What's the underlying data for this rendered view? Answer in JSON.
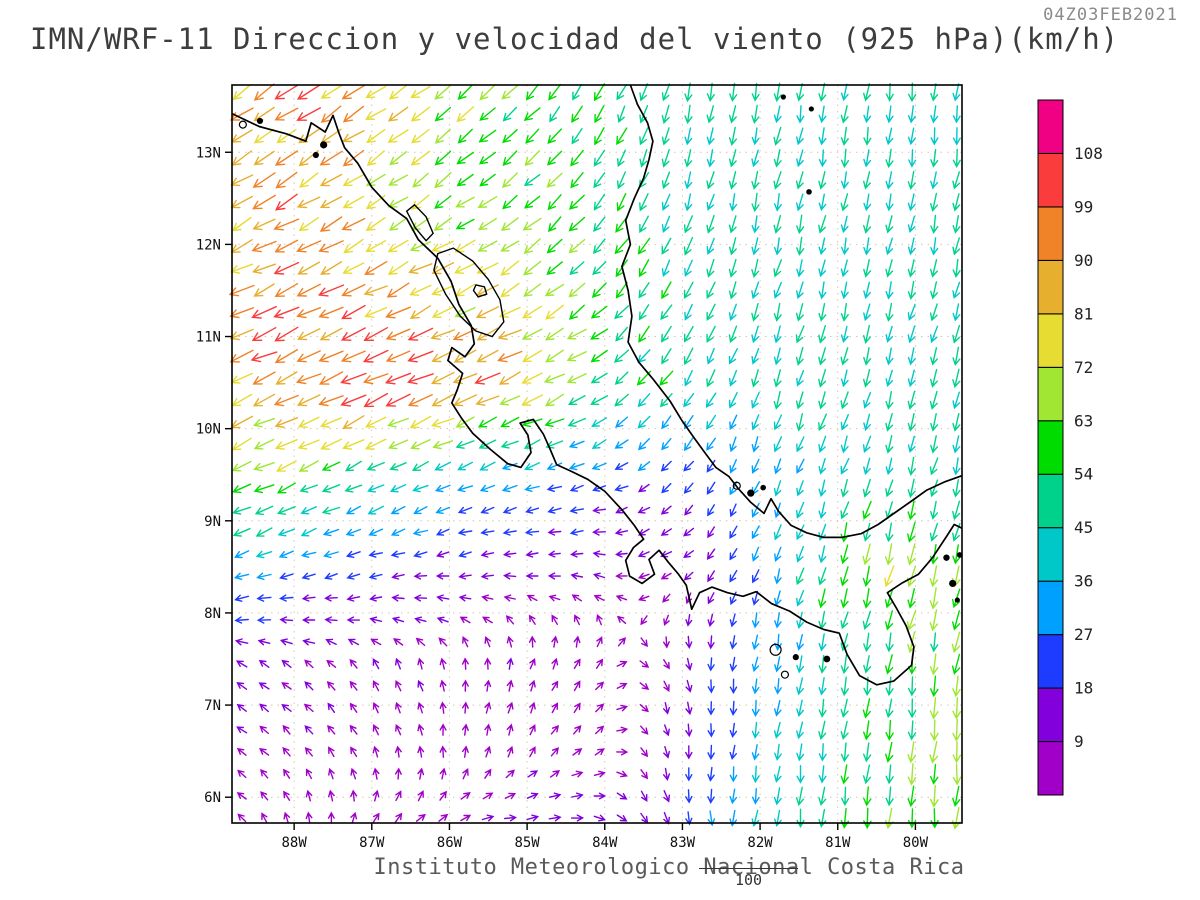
{
  "header": {
    "title": "IMN/WRF-11 Direccion y velocidad del viento (925 hPa)(km/h)",
    "timestamp": "04Z03FEB2021"
  },
  "footer": {
    "credit": "Instituto Meteorologico Nacional Costa Rica",
    "scale_label": "100"
  },
  "chart_data": {
    "type": "vector_field",
    "title": "IMN/WRF-11 Direccion y velocidad del viento (925 hPa)(km/h)",
    "variable": "Direccion y velocidad del viento",
    "level": "925 hPa",
    "units": "km/h",
    "valid_time": "04Z03FEB2021",
    "axes": {
      "lat_ticks": [
        "13N",
        "12N",
        "11N",
        "10N",
        "9N",
        "8N",
        "7N",
        "6N"
      ],
      "lat_values": [
        13,
        12,
        11,
        10,
        9,
        8,
        7,
        6
      ],
      "lon_ticks": [
        "88W",
        "87W",
        "86W",
        "85W",
        "84W",
        "83W",
        "82W",
        "81W",
        "80W"
      ],
      "lon_values": [
        -88,
        -87,
        -86,
        -85,
        -84,
        -83,
        -82,
        -81,
        -80
      ]
    },
    "colorbar": {
      "levels": [
        9,
        18,
        27,
        36,
        45,
        54,
        63,
        72,
        81,
        90,
        99,
        108
      ],
      "label_values": [
        "9",
        "18",
        "27",
        "36",
        "45",
        "54",
        "63",
        "72",
        "81",
        "90",
        "99",
        "108"
      ],
      "colors": [
        "#a000c8",
        "#8200dc",
        "#1e3cff",
        "#00a0ff",
        "#00c8c8",
        "#00d28c",
        "#00dc00",
        "#a0e632",
        "#e6dc32",
        "#e6af2d",
        "#f08228",
        "#fa3c3c",
        "#f00082"
      ]
    },
    "map": {
      "extent": {
        "lon_min": -88.8,
        "lon_max": -79.4,
        "lat_min": 5.72,
        "lat_max": 13.73
      },
      "coastlines": [
        [
          [
            -88.8,
            13.42
          ],
          [
            -88.45,
            13.28
          ],
          [
            -88.1,
            13.2
          ],
          [
            -87.85,
            13.12
          ],
          [
            -87.78,
            13.32
          ],
          [
            -87.6,
            13.22
          ],
          [
            -87.5,
            13.4
          ],
          [
            -87.42,
            13.2
          ],
          [
            -87.35,
            13.05
          ],
          [
            -87.18,
            12.88
          ],
          [
            -87.0,
            12.62
          ],
          [
            -86.78,
            12.42
          ],
          [
            -86.55,
            12.28
          ],
          [
            -86.4,
            12.05
          ],
          [
            -86.15,
            11.85
          ],
          [
            -85.98,
            11.6
          ],
          [
            -85.88,
            11.35
          ],
          [
            -85.72,
            11.12
          ],
          [
            -85.68,
            10.92
          ],
          [
            -85.8,
            10.78
          ],
          [
            -85.97,
            10.88
          ],
          [
            -86.02,
            10.74
          ],
          [
            -85.83,
            10.6
          ],
          [
            -85.9,
            10.42
          ],
          [
            -85.97,
            10.28
          ],
          [
            -85.85,
            10.12
          ],
          [
            -85.7,
            9.95
          ],
          [
            -85.48,
            9.78
          ],
          [
            -85.25,
            9.62
          ],
          [
            -85.08,
            9.58
          ],
          [
            -84.95,
            9.74
          ],
          [
            -84.99,
            9.93
          ],
          [
            -85.09,
            10.06
          ],
          [
            -84.92,
            10.1
          ],
          [
            -84.79,
            9.94
          ],
          [
            -84.7,
            9.77
          ],
          [
            -84.62,
            9.61
          ],
          [
            -84.44,
            9.54
          ],
          [
            -84.22,
            9.45
          ],
          [
            -84.0,
            9.32
          ],
          [
            -83.78,
            9.12
          ],
          [
            -83.62,
            8.95
          ],
          [
            -83.5,
            8.8
          ],
          [
            -83.63,
            8.71
          ],
          [
            -83.73,
            8.57
          ],
          [
            -83.68,
            8.4
          ],
          [
            -83.52,
            8.32
          ],
          [
            -83.36,
            8.42
          ],
          [
            -83.43,
            8.58
          ],
          [
            -83.3,
            8.68
          ],
          [
            -83.18,
            8.55
          ],
          [
            -83.05,
            8.42
          ],
          [
            -82.95,
            8.3
          ],
          [
            -82.88,
            8.04
          ],
          [
            -82.78,
            8.22
          ],
          [
            -82.62,
            8.28
          ],
          [
            -82.42,
            8.22
          ],
          [
            -82.22,
            8.18
          ],
          [
            -82.05,
            8.23
          ],
          [
            -81.85,
            8.1
          ],
          [
            -81.62,
            8.02
          ],
          [
            -81.4,
            7.9
          ],
          [
            -81.18,
            7.82
          ],
          [
            -80.98,
            7.78
          ],
          [
            -80.88,
            7.55
          ],
          [
            -80.72,
            7.32
          ],
          [
            -80.5,
            7.22
          ],
          [
            -80.28,
            7.26
          ],
          [
            -80.05,
            7.43
          ],
          [
            -80.02,
            7.63
          ],
          [
            -80.12,
            7.86
          ],
          [
            -80.25,
            8.06
          ],
          [
            -80.36,
            8.22
          ],
          [
            -80.18,
            8.32
          ],
          [
            -79.96,
            8.42
          ],
          [
            -79.78,
            8.6
          ],
          [
            -79.6,
            8.83
          ],
          [
            -79.5,
            8.96
          ],
          [
            -79.4,
            8.92
          ]
        ],
        [
          [
            -83.67,
            13.73
          ],
          [
            -83.58,
            13.52
          ],
          [
            -83.45,
            13.32
          ],
          [
            -83.38,
            13.12
          ],
          [
            -83.43,
            12.92
          ],
          [
            -83.5,
            12.72
          ],
          [
            -83.62,
            12.5
          ],
          [
            -83.73,
            12.26
          ],
          [
            -83.67,
            12.0
          ],
          [
            -83.78,
            11.76
          ],
          [
            -83.7,
            11.5
          ],
          [
            -83.65,
            11.22
          ],
          [
            -83.7,
            10.94
          ],
          [
            -83.56,
            10.72
          ],
          [
            -83.38,
            10.54
          ],
          [
            -83.16,
            10.3
          ],
          [
            -83.0,
            10.08
          ],
          [
            -82.85,
            9.9
          ],
          [
            -82.72,
            9.75
          ],
          [
            -82.57,
            9.58
          ],
          [
            -82.4,
            9.48
          ],
          [
            -82.28,
            9.35
          ],
          [
            -82.12,
            9.2
          ],
          [
            -81.95,
            9.08
          ],
          [
            -81.86,
            9.24
          ],
          [
            -81.76,
            9.1
          ],
          [
            -81.6,
            8.95
          ],
          [
            -81.4,
            8.87
          ],
          [
            -81.18,
            8.82
          ],
          [
            -80.95,
            8.82
          ],
          [
            -80.7,
            8.86
          ],
          [
            -80.48,
            8.96
          ],
          [
            -80.26,
            9.09
          ],
          [
            -80.04,
            9.22
          ],
          [
            -79.86,
            9.33
          ],
          [
            -79.63,
            9.42
          ],
          [
            -79.4,
            9.49
          ]
        ]
      ],
      "lakes": [
        [
          [
            -86.55,
            12.36
          ],
          [
            -86.44,
            12.18
          ],
          [
            -86.3,
            12.04
          ],
          [
            -86.21,
            12.12
          ],
          [
            -86.3,
            12.3
          ],
          [
            -86.45,
            12.43
          ],
          [
            -86.55,
            12.36
          ]
        ],
        [
          [
            -86.15,
            11.9
          ],
          [
            -85.95,
            11.96
          ],
          [
            -85.7,
            11.82
          ],
          [
            -85.5,
            11.62
          ],
          [
            -85.35,
            11.4
          ],
          [
            -85.3,
            11.16
          ],
          [
            -85.45,
            11.0
          ],
          [
            -85.66,
            11.06
          ],
          [
            -85.86,
            11.22
          ],
          [
            -86.05,
            11.46
          ],
          [
            -86.2,
            11.72
          ],
          [
            -86.15,
            11.9
          ]
        ],
        [
          [
            -85.66,
            11.56
          ],
          [
            -85.55,
            11.54
          ],
          [
            -85.52,
            11.46
          ],
          [
            -85.63,
            11.43
          ],
          [
            -85.69,
            11.5
          ],
          [
            -85.66,
            11.56
          ]
        ]
      ],
      "islands": [
        {
          "lon": -88.66,
          "lat": 13.3,
          "r": 3.5
        },
        {
          "lon": -88.44,
          "lat": 13.34,
          "r": 2.5
        },
        {
          "lon": -87.62,
          "lat": 13.08,
          "r": 3
        },
        {
          "lon": -87.72,
          "lat": 12.97,
          "r": 2.5
        },
        {
          "lon": -81.7,
          "lat": 13.6,
          "r": 2
        },
        {
          "lon": -81.34,
          "lat": 13.47,
          "r": 2
        },
        {
          "lon": -81.37,
          "lat": 12.57,
          "r": 2.2
        },
        {
          "lon": -82.3,
          "lat": 9.38,
          "r": 3.5
        },
        {
          "lon": -82.12,
          "lat": 9.3,
          "r": 3
        },
        {
          "lon": -81.96,
          "lat": 9.36,
          "r": 2.2
        },
        {
          "lon": -81.8,
          "lat": 7.6,
          "r": 5.5
        },
        {
          "lon": -81.68,
          "lat": 7.33,
          "r": 3.5
        },
        {
          "lon": -81.54,
          "lat": 7.52,
          "r": 2.5
        },
        {
          "lon": -81.14,
          "lat": 7.5,
          "r": 2.8
        },
        {
          "lon": -79.6,
          "lat": 8.6,
          "r": 2.6
        },
        {
          "lon": -79.52,
          "lat": 8.32,
          "r": 3
        },
        {
          "lon": -79.43,
          "lat": 8.63,
          "r": 2.2
        },
        {
          "lon": -79.46,
          "lat": 8.14,
          "r": 2
        }
      ]
    },
    "wind_grid": {
      "units": "km/h",
      "lons": [
        -89,
        -88,
        -87,
        -86,
        -85,
        -84,
        -83,
        -82,
        -81,
        -80,
        -79
      ],
      "lats": [
        13.5,
        12.5,
        11.5,
        10.5,
        9.5,
        8.5,
        7.5,
        6.5,
        5.5
      ],
      "u": [
        [
          -65,
          -75,
          -70,
          -52,
          -40,
          -25,
          -12,
          -8,
          -5,
          -5,
          -5
        ],
        [
          -70,
          -78,
          -62,
          -55,
          -45,
          -30,
          -15,
          -10,
          -8,
          -8,
          -10
        ],
        [
          -80,
          -85,
          -80,
          -70,
          -60,
          -40,
          -20,
          -12,
          -10,
          -10,
          -12
        ],
        [
          -75,
          -85,
          -95,
          -92,
          -75,
          -45,
          -25,
          -15,
          -12,
          -12,
          -15
        ],
        [
          -60,
          -55,
          -45,
          -35,
          -28,
          -22,
          -15,
          -12,
          -15,
          -12,
          -10
        ],
        [
          -30,
          -25,
          -20,
          -15,
          -12,
          -10,
          -8,
          -10,
          -15,
          -18,
          -15
        ],
        [
          -12,
          -8,
          -5,
          -2,
          2,
          5,
          3,
          -5,
          -8,
          -10,
          -8
        ],
        [
          -8,
          -5,
          -3,
          0,
          4,
          6,
          2,
          -5,
          -5,
          -5,
          -5
        ],
        [
          -5,
          0,
          5,
          10,
          15,
          12,
          5,
          -5,
          -5,
          -5,
          -5
        ]
      ],
      "v": [
        [
          -45,
          -50,
          -50,
          -42,
          -40,
          -45,
          -45,
          -45,
          -44,
          -45,
          -45
        ],
        [
          -40,
          -45,
          -40,
          -38,
          -40,
          -45,
          -45,
          -45,
          -44,
          -45,
          -45
        ],
        [
          -40,
          -40,
          -38,
          -35,
          -35,
          -40,
          -45,
          -42,
          -42,
          -43,
          -45
        ],
        [
          -35,
          -38,
          -42,
          -40,
          -35,
          -30,
          -40,
          -42,
          -42,
          -44,
          -45
        ],
        [
          -30,
          -25,
          -20,
          -15,
          -10,
          -8,
          -15,
          -30,
          -40,
          -42,
          -40
        ],
        [
          -12,
          -8,
          -5,
          -2,
          0,
          2,
          -5,
          -25,
          -55,
          -68,
          -50
        ],
        [
          5,
          6,
          7,
          8,
          8,
          6,
          -10,
          -30,
          -45,
          -55,
          -60
        ],
        [
          4,
          6,
          7,
          8,
          7,
          4,
          -15,
          -35,
          -50,
          -60,
          -70
        ],
        [
          3,
          5,
          5,
          3,
          0,
          -5,
          -20,
          -40,
          -55,
          -60,
          -62
        ]
      ]
    }
  }
}
